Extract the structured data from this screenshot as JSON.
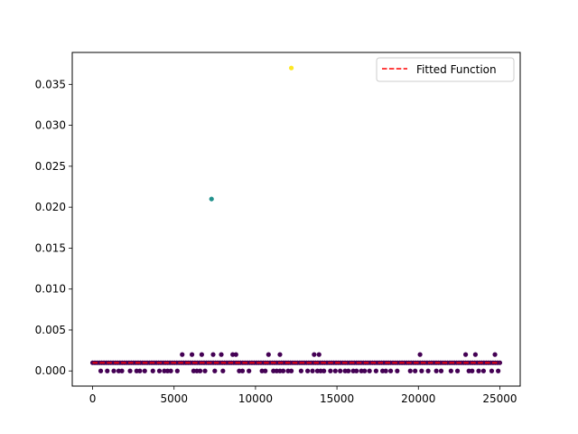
{
  "chart_data": {
    "type": "scatter",
    "title": "",
    "xlabel": "",
    "ylabel": "",
    "xlim": [
      -1250,
      26250
    ],
    "ylim": [
      -0.00185,
      0.0389
    ],
    "xticks": [
      0,
      5000,
      10000,
      15000,
      20000,
      25000
    ],
    "xtick_labels": [
      "0",
      "5000",
      "10000",
      "15000",
      "20000",
      "25000"
    ],
    "yticks": [
      0.0,
      0.005,
      0.01,
      0.015,
      0.02,
      0.025,
      0.03,
      0.035
    ],
    "ytick_labels": [
      "0.000",
      "0.005",
      "0.010",
      "0.015",
      "0.020",
      "0.025",
      "0.030",
      "0.035"
    ],
    "grid": false,
    "legend_position": "top-right",
    "colormap_colors": {
      "low": "#440154",
      "mid": "#21918c",
      "high": "#fde725"
    },
    "fit_color": "#ff0000",
    "series": [
      {
        "name": "",
        "kind": "scatter",
        "points": [
          [
            12200,
            0.037
          ],
          [
            7300,
            0.021
          ],
          [
            5500,
            0.002
          ],
          [
            6100,
            0.002
          ],
          [
            6700,
            0.002
          ],
          [
            7400,
            0.002
          ],
          [
            7900,
            0.002
          ],
          [
            8600,
            0.002
          ],
          [
            8800,
            0.002
          ],
          [
            10800,
            0.002
          ],
          [
            11500,
            0.002
          ],
          [
            13600,
            0.002
          ],
          [
            13900,
            0.002
          ],
          [
            20100,
            0.002
          ],
          [
            22900,
            0.002
          ],
          [
            23500,
            0.002
          ],
          [
            24700,
            0.002
          ],
          [
            500,
            0.0
          ],
          [
            900,
            0.0
          ],
          [
            1300,
            0.0
          ],
          [
            1600,
            0.0
          ],
          [
            1800,
            0.0
          ],
          [
            2300,
            0.0
          ],
          [
            2700,
            0.0
          ],
          [
            2900,
            0.0
          ],
          [
            3200,
            0.0
          ],
          [
            3700,
            0.0
          ],
          [
            4100,
            0.0
          ],
          [
            4400,
            0.0
          ],
          [
            4600,
            0.0
          ],
          [
            4800,
            0.0
          ],
          [
            5200,
            0.0
          ],
          [
            6200,
            0.0
          ],
          [
            6400,
            0.0
          ],
          [
            6600,
            0.0
          ],
          [
            6900,
            0.0
          ],
          [
            7500,
            0.0
          ],
          [
            8000,
            0.0
          ],
          [
            9000,
            0.0
          ],
          [
            9200,
            0.0
          ],
          [
            9600,
            0.0
          ],
          [
            10400,
            0.0
          ],
          [
            10600,
            0.0
          ],
          [
            11100,
            0.0
          ],
          [
            11300,
            0.0
          ],
          [
            11500,
            0.0
          ],
          [
            11700,
            0.0
          ],
          [
            12000,
            0.0
          ],
          [
            12200,
            0.0
          ],
          [
            12800,
            0.0
          ],
          [
            13200,
            0.0
          ],
          [
            13500,
            0.0
          ],
          [
            13800,
            0.0
          ],
          [
            14000,
            0.0
          ],
          [
            14200,
            0.0
          ],
          [
            14600,
            0.0
          ],
          [
            14900,
            0.0
          ],
          [
            15200,
            0.0
          ],
          [
            15500,
            0.0
          ],
          [
            15700,
            0.0
          ],
          [
            16000,
            0.0
          ],
          [
            16200,
            0.0
          ],
          [
            16500,
            0.0
          ],
          [
            16700,
            0.0
          ],
          [
            17000,
            0.0
          ],
          [
            17400,
            0.0
          ],
          [
            17800,
            0.0
          ],
          [
            18000,
            0.0
          ],
          [
            18300,
            0.0
          ],
          [
            18700,
            0.0
          ],
          [
            19500,
            0.0
          ],
          [
            19800,
            0.0
          ],
          [
            20200,
            0.0
          ],
          [
            20600,
            0.0
          ],
          [
            21100,
            0.0
          ],
          [
            21400,
            0.0
          ],
          [
            22000,
            0.0
          ],
          [
            22400,
            0.0
          ],
          [
            23100,
            0.0
          ],
          [
            23300,
            0.0
          ],
          [
            23700,
            0.0
          ],
          [
            24000,
            0.0
          ],
          [
            24500,
            0.0
          ],
          [
            24900,
            0.0
          ]
        ],
        "dense_band": {
          "value": 0.001,
          "x_start": 0,
          "x_end": 25000,
          "count": 180
        }
      },
      {
        "name": "Fitted Function",
        "kind": "line",
        "style": "dashed",
        "x": [
          0,
          25000
        ],
        "values": [
          0.001,
          0.001
        ]
      }
    ]
  }
}
